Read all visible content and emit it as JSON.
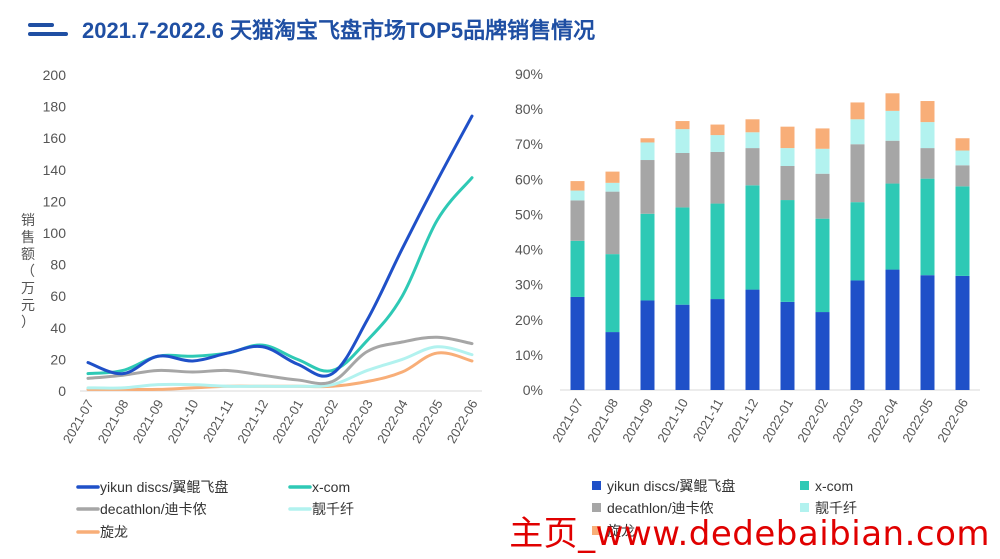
{
  "header": {
    "title": "2021.7-2022.6 天猫淘宝飞盘市场TOP5品牌销售情况"
  },
  "watermark": "主页_www.dedebaibian.com",
  "colors": {
    "yikun": "#1f50c8",
    "xcom": "#2ec9b5",
    "decathlon": "#a6a6a6",
    "liangqianxian": "#b2f2ef",
    "xuanlong": "#f8ae78",
    "axis_text": "#555555",
    "grid": "#e6e6e6"
  },
  "chart_data": [
    {
      "type": "line",
      "ylabel": "销售额（万元）",
      "ylim": [
        0,
        200
      ],
      "yticks": [
        "0",
        "20",
        "40",
        "60",
        "80",
        "100",
        "120",
        "140",
        "160",
        "180",
        "200"
      ],
      "categories": [
        "2021-07",
        "2021-08",
        "2021-09",
        "2021-10",
        "2021-11",
        "2021-12",
        "2022-01",
        "2022-02",
        "2022-03",
        "2022-04",
        "2022-05",
        "2022-06"
      ],
      "series": [
        {
          "name": "yikun discs/翼鲲飞盘",
          "key": "yikun",
          "values": [
            18,
            11,
            22,
            19,
            24,
            28,
            17,
            11,
            45,
            90,
            133,
            174
          ]
        },
        {
          "name": "x-com",
          "key": "xcom",
          "values": [
            11,
            13,
            22,
            22,
            24,
            29,
            20,
            13,
            32,
            60,
            108,
            135
          ]
        },
        {
          "name": "decathlon/迪卡侬",
          "key": "decathlon",
          "values": [
            8,
            10,
            13,
            12,
            13,
            10,
            7,
            6,
            25,
            31,
            34,
            30
          ]
        },
        {
          "name": "靓千纤",
          "key": "liangqianxian",
          "values": [
            2,
            2,
            4,
            4,
            3,
            3,
            3,
            4,
            13,
            20,
            28,
            23
          ]
        },
        {
          "name": "旋龙",
          "key": "xuanlong",
          "values": [
            1,
            1,
            1,
            2,
            3,
            3,
            3,
            3,
            6,
            12,
            24,
            19
          ]
        }
      ]
    },
    {
      "type": "bar",
      "stacked": true,
      "ylim": [
        0,
        0.9
      ],
      "yticks": [
        "0%",
        "10%",
        "20%",
        "30%",
        "40%",
        "50%",
        "60%",
        "70%",
        "80%",
        "90%"
      ],
      "categories": [
        "2021-07",
        "2021-08",
        "2021-09",
        "2021-10",
        "2021-11",
        "2021-12",
        "2022-01",
        "2022-02",
        "2022-03",
        "2022-04",
        "2022-05",
        "2022-06"
      ],
      "series": [
        {
          "name": "yikun discs/翼鲲飞盘",
          "key": "yikun",
          "values": [
            0.265,
            0.165,
            0.255,
            0.243,
            0.259,
            0.286,
            0.251,
            0.222,
            0.312,
            0.343,
            0.327,
            0.325
          ]
        },
        {
          "name": "x-com",
          "key": "xcom",
          "values": [
            0.16,
            0.222,
            0.247,
            0.277,
            0.272,
            0.297,
            0.29,
            0.266,
            0.223,
            0.245,
            0.275,
            0.255
          ]
        },
        {
          "name": "decathlon/迪卡侬",
          "key": "decathlon",
          "values": [
            0.115,
            0.178,
            0.153,
            0.155,
            0.147,
            0.106,
            0.097,
            0.128,
            0.165,
            0.122,
            0.087,
            0.06
          ]
        },
        {
          "name": "靓千纤",
          "key": "liangqianxian",
          "values": [
            0.028,
            0.025,
            0.05,
            0.068,
            0.048,
            0.045,
            0.051,
            0.071,
            0.071,
            0.085,
            0.074,
            0.042
          ]
        },
        {
          "name": "旋龙",
          "key": "xuanlong",
          "values": [
            0.027,
            0.032,
            0.012,
            0.023,
            0.03,
            0.037,
            0.061,
            0.058,
            0.048,
            0.05,
            0.06,
            0.035
          ]
        }
      ]
    }
  ],
  "legend_left": [
    {
      "label": "yikun discs/翼鲲飞盘",
      "key": "yikun"
    },
    {
      "label": "x-com",
      "key": "xcom"
    },
    {
      "label": "decathlon/迪卡侬",
      "key": "decathlon"
    },
    {
      "label": "靓千纤",
      "key": "liangqianxian"
    },
    {
      "label": "旋龙",
      "key": "xuanlong"
    }
  ],
  "legend_right": [
    {
      "label": "yikun discs/翼鲲飞盘",
      "key": "yikun"
    },
    {
      "label": "x-com",
      "key": "xcom"
    },
    {
      "label": "decathlon/迪卡侬",
      "key": "decathlon"
    },
    {
      "label": "靓千纤",
      "key": "liangqianxian"
    },
    {
      "label": "旋龙",
      "key": "xuanlong"
    }
  ]
}
